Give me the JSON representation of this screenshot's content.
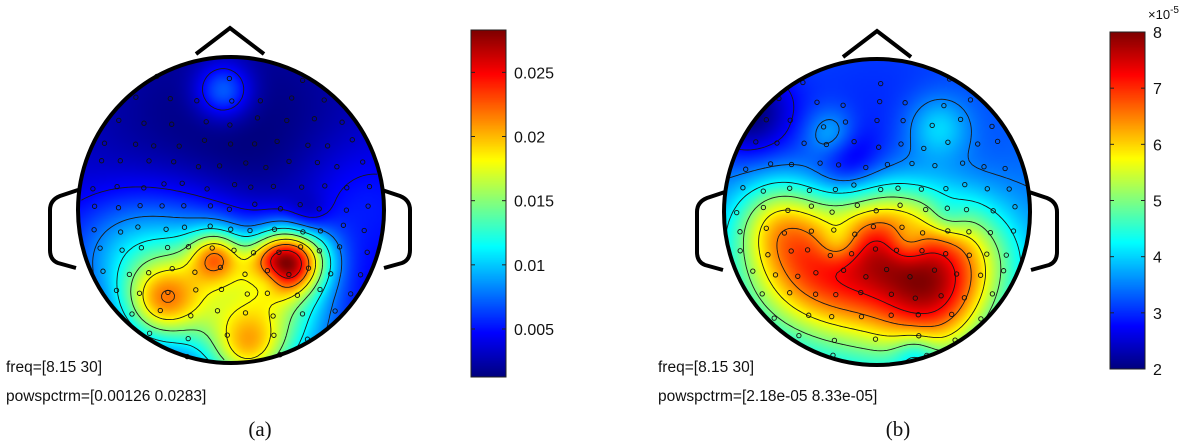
{
  "chart_data": [
    {
      "type": "heatmap",
      "panel_label": "(a)",
      "freq_text": "freq=[8.15 30]",
      "power_text": "powspctrm=[0.00126 0.0283]",
      "colorbar": {
        "min": 0.00126,
        "max": 0.0283,
        "ticks": [
          0.005,
          0.01,
          0.015,
          0.02,
          0.025
        ],
        "tick_labels": [
          "0.005",
          "0.01",
          "0.015",
          "0.02",
          "0.025"
        ],
        "exponent_label": ""
      },
      "colormap": "jet",
      "hotspots": [
        {
          "x": -0.05,
          "y": 0.78,
          "r": 0.13,
          "v": 0.45
        },
        {
          "x": 0.45,
          "y": -0.32,
          "r": 0.16,
          "v": 0.95
        },
        {
          "x": 0.3,
          "y": -0.35,
          "r": 0.14,
          "v": 0.9
        },
        {
          "x": -0.1,
          "y": -0.3,
          "r": 0.12,
          "v": 0.75
        },
        {
          "x": -0.45,
          "y": -0.6,
          "r": 0.18,
          "v": 0.8
        },
        {
          "x": 0.0,
          "y": -0.55,
          "r": 0.3,
          "v": 0.55
        },
        {
          "x": 0.35,
          "y": -0.7,
          "r": 0.25,
          "v": 0.5
        },
        {
          "x": -0.4,
          "y": -0.35,
          "r": 0.35,
          "v": 0.55
        },
        {
          "x": 0.1,
          "y": -0.92,
          "r": 0.18,
          "v": 0.75
        },
        {
          "x": 0.0,
          "y": 0.4,
          "r": 0.9,
          "v": -0.35
        },
        {
          "x": 0.8,
          "y": 0.05,
          "r": 0.3,
          "v": 0.2
        },
        {
          "x": -0.75,
          "y": -0.25,
          "r": 0.25,
          "v": 0.2
        },
        {
          "x": 0.5,
          "y": -0.05,
          "r": 0.1,
          "v": -0.2
        },
        {
          "x": 0.25,
          "y": -0.45,
          "r": 0.08,
          "v": -0.3
        }
      ],
      "base_value": 0.28,
      "level_min": 0.12,
      "contour_levels": 7
    },
    {
      "type": "heatmap",
      "panel_label": "(b)",
      "freq_text": "freq=[8.15 30]",
      "power_text": "powspctrm=[2.18e-05 8.33e-05]",
      "colorbar": {
        "min": 2,
        "max": 8,
        "ticks": [
          2,
          3,
          4,
          5,
          6,
          7,
          8
        ],
        "tick_labels": [
          "2",
          "3",
          "4",
          "5",
          "6",
          "7",
          "8"
        ],
        "exponent_label": "×10",
        "exponent_power": "-5"
      },
      "colormap": "jet",
      "hotspots": [
        {
          "x": -0.5,
          "y": -0.35,
          "r": 0.3,
          "v": 0.95
        },
        {
          "x": 0.5,
          "y": -0.3,
          "r": 0.28,
          "v": 0.95
        },
        {
          "x": 0.05,
          "y": -0.15,
          "r": 0.25,
          "v": 0.85
        },
        {
          "x": -0.1,
          "y": -0.55,
          "r": 0.3,
          "v": 0.7
        },
        {
          "x": 0.35,
          "y": -0.65,
          "r": 0.25,
          "v": 0.8
        },
        {
          "x": -0.65,
          "y": -0.05,
          "r": 0.2,
          "v": 0.5
        },
        {
          "x": 0.0,
          "y": 0.55,
          "r": 0.8,
          "v": -0.25
        },
        {
          "x": -0.3,
          "y": 0.5,
          "r": 0.12,
          "v": 0.35
        },
        {
          "x": 0.4,
          "y": 0.55,
          "r": 0.15,
          "v": 0.35
        },
        {
          "x": 0.2,
          "y": -0.2,
          "r": 0.1,
          "v": -0.35
        },
        {
          "x": -0.25,
          "y": -0.2,
          "r": 0.1,
          "v": -0.3
        },
        {
          "x": 0.45,
          "y": -0.05,
          "r": 0.1,
          "v": -0.25
        },
        {
          "x": -0.2,
          "y": 0.35,
          "r": 0.15,
          "v": -0.3
        },
        {
          "x": -0.85,
          "y": 0.65,
          "r": 0.2,
          "v": -0.5
        },
        {
          "x": 0.25,
          "y": -0.92,
          "r": 0.1,
          "v": -0.3
        }
      ],
      "base_value": 0.4,
      "level_min": 0.0,
      "contour_levels": 7
    }
  ]
}
